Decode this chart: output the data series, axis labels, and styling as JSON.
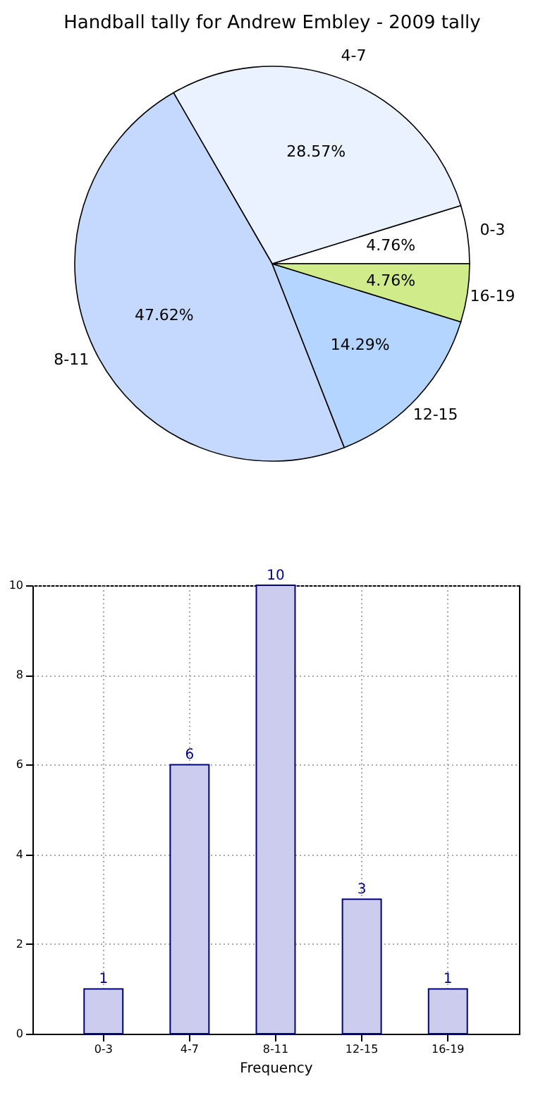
{
  "chart_data": [
    {
      "type": "pie",
      "title": "Handball tally for Andrew Embley - 2009 tally",
      "categories": [
        "0-3",
        "4-7",
        "8-11",
        "12-15",
        "16-19"
      ],
      "values": [
        4.76,
        28.57,
        47.62,
        14.29,
        4.76
      ],
      "colors": [
        "#ffffff",
        "#eaf2ff",
        "#c5d9ff",
        "#b3d5ff",
        "#d0eb8a"
      ],
      "value_labels": [
        "4.76%",
        "28.57%",
        "47.62%",
        "14.29%",
        "4.76%"
      ]
    },
    {
      "type": "bar",
      "categories": [
        "0-3",
        "4-7",
        "8-11",
        "12-15",
        "16-19"
      ],
      "values": [
        1,
        6,
        10,
        3,
        1
      ],
      "color": "#ccccee",
      "xlabel": "Frequency",
      "ylim": [
        0,
        10
      ],
      "yticks": [
        0,
        2,
        4,
        6,
        8,
        10
      ],
      "grid": true,
      "data_labels": true
    }
  ]
}
